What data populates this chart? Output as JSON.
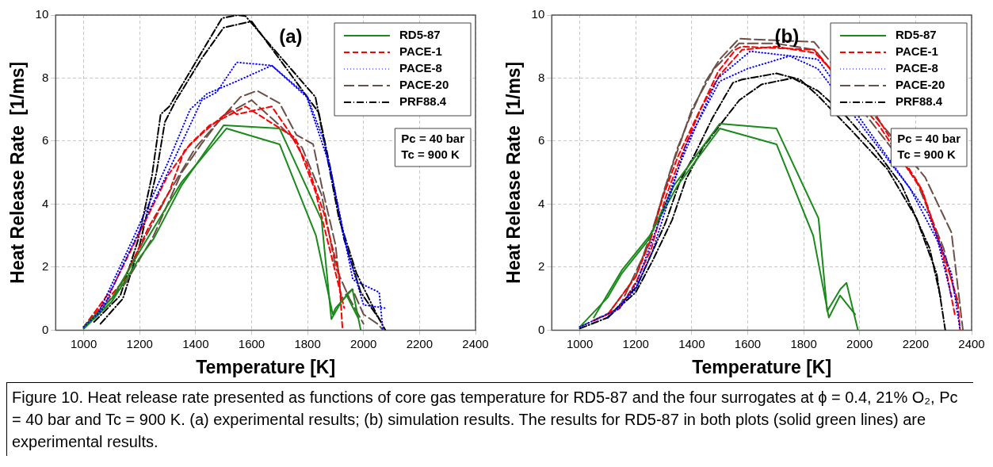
{
  "chart_data": [
    {
      "type": "line",
      "xlabel": "Temperature [K]",
      "ylabel": "Heat Release Rate  [1/ms]",
      "xlim": [
        900,
        2400
      ],
      "ylim": [
        0,
        10
      ],
      "xticks": [
        1000,
        1200,
        1400,
        1600,
        1800,
        2000,
        2200,
        2400
      ],
      "yticks": [
        0,
        2,
        4,
        6,
        8,
        10
      ],
      "grid": true,
      "legend": "top right",
      "annotations": [
        "(a)",
        "Pc = 40 bar",
        "Tc = 900 K"
      ],
      "series": [
        {
          "name": "RD5-87",
          "color": "#1a8a1a",
          "line_style": "solid",
          "x": [
            1000,
            1100,
            1200,
            1250,
            1350,
            1500,
            1700,
            1850,
            1885,
            1920,
            1960,
            1990
          ],
          "values": [
            0.05,
            0.9,
            2.3,
            2.9,
            4.6,
            6.5,
            6.4,
            3.5,
            0.35,
            0.9,
            1.3,
            0
          ]
        },
        {
          "color": "#1a8a1a",
          "line_style": "solid",
          "x": [
            1000,
            1100,
            1200,
            1350,
            1510,
            1700,
            1830,
            1890,
            1900,
            1940,
            1980
          ],
          "values": [
            0.1,
            1.0,
            2.5,
            4.7,
            6.4,
            5.9,
            3.0,
            0.5,
            0.7,
            1.1,
            0.4
          ]
        },
        {
          "name": "PACE-1",
          "color": "#ff0000",
          "line_style": "dashed",
          "x": [
            1000,
            1141,
            1234,
            1306,
            1360,
            1412,
            1444,
            1525,
            1547,
            1672,
            1734,
            1797,
            1859,
            1912,
            1925
          ],
          "values": [
            0.1,
            1.55,
            3.3,
            4.4,
            5.7,
            6.15,
            6.4,
            7.0,
            6.85,
            7.1,
            6.3,
            5.3,
            3.7,
            1.8,
            0
          ]
        },
        {
          "color": "#ff0000",
          "line_style": "dashed",
          "x": [
            1000,
            1100,
            1200,
            1300,
            1380,
            1450,
            1578,
            1756,
            1828,
            1931
          ],
          "values": [
            0.1,
            1.3,
            3.1,
            4.9,
            5.9,
            6.5,
            7.1,
            6.1,
            4.4,
            0.7
          ]
        },
        {
          "name": "PACE-8",
          "color": "#0000ff",
          "line_style": "dotted",
          "x": [
            1000,
            1069,
            1150,
            1306,
            1422,
            1475,
            1547,
            1672,
            1797,
            1859,
            1931,
            1962,
            2056,
            2069
          ],
          "values": [
            0.1,
            0.68,
            2.25,
            5.1,
            7.3,
            7.55,
            8.5,
            8.4,
            7.45,
            6.0,
            2.95,
            1.6,
            1.2,
            0
          ]
        },
        {
          "color": "#0000ff",
          "line_style": "dotted",
          "x": [
            1050,
            1150,
            1300,
            1380,
            1440,
            1547,
            1672,
            1797,
            1880,
            1940,
            2000,
            2078
          ],
          "values": [
            0.5,
            2.4,
            5.3,
            7.0,
            7.5,
            7.9,
            8.4,
            7.4,
            5.2,
            2.6,
            0.8,
            0.7
          ]
        },
        {
          "name": "PACE-20",
          "color": "#6b5048",
          "line_style": "longdash",
          "x": [
            1000,
            1150,
            1250,
            1300,
            1350,
            1420,
            1480,
            1560,
            1620,
            1700,
            1760,
            1820,
            1850,
            1900,
            1920,
            1960,
            2000,
            2050,
            2070
          ],
          "values": [
            0.1,
            1.5,
            3.0,
            4.0,
            5.0,
            5.9,
            6.6,
            7.4,
            7.6,
            7.2,
            6.2,
            5.9,
            4.6,
            2.7,
            1.0,
            1.3,
            0.5,
            0.2,
            0
          ]
        },
        {
          "color": "#6b5048",
          "line_style": "longdash",
          "x": [
            1000,
            1100,
            1200,
            1300,
            1400,
            1500,
            1600,
            1700,
            1780,
            1850,
            1900,
            1950,
            2000
          ],
          "values": [
            0.05,
            0.9,
            2.6,
            4.3,
            5.8,
            6.8,
            7.3,
            6.5,
            5.8,
            4.3,
            2.0,
            1.0,
            0.2
          ]
        },
        {
          "name": "PRF88.4",
          "color": "#000000",
          "line_style": "dashdot",
          "x": [
            1037,
            1131,
            1194,
            1244,
            1275,
            1306,
            1400,
            1494,
            1550,
            1578,
            1681,
            1828,
            1859,
            1912,
            1975,
            2047,
            2078
          ],
          "values": [
            0.26,
            1.1,
            2.85,
            4.9,
            6.85,
            7.1,
            8.5,
            9.9,
            10,
            9.97,
            8.9,
            7.4,
            6.0,
            3.55,
            1.8,
            0.5,
            0
          ]
        },
        {
          "color": "#000000",
          "line_style": "dashdot",
          "x": [
            1060,
            1140,
            1200,
            1260,
            1290,
            1330,
            1420,
            1500,
            1600,
            1700,
            1840,
            1880,
            1930,
            1990,
            2060
          ],
          "values": [
            0.2,
            1.0,
            2.7,
            5.0,
            6.6,
            7.3,
            8.6,
            9.6,
            9.8,
            8.6,
            6.9,
            5.2,
            2.9,
            1.2,
            0.3
          ]
        }
      ]
    },
    {
      "type": "line",
      "xlabel": "Temperature [K]",
      "ylabel": "Heat Release Rate  [1/ms]",
      "xlim": [
        900,
        2400
      ],
      "ylim": [
        0,
        10
      ],
      "xticks": [
        1000,
        1200,
        1400,
        1600,
        1800,
        2000,
        2200,
        2400
      ],
      "yticks": [
        0,
        2,
        4,
        6,
        8,
        10
      ],
      "grid": true,
      "legend": "top right",
      "annotations": [
        "(b)",
        "Pc = 40 bar",
        "Tc = 900 K"
      ],
      "series": [
        {
          "name": "RD5-87",
          "color": "#1a8a1a",
          "line_style": "solid",
          "x": [
            1000,
            1100,
            1150,
            1244,
            1337,
            1500,
            1703,
            1853,
            1884,
            1931,
            1953,
            1994
          ],
          "values": [
            0.1,
            1.04,
            1.8,
            2.85,
            4.6,
            6.55,
            6.4,
            3.55,
            0.6,
            1.3,
            1.5,
            0
          ]
        },
        {
          "color": "#1a8a1a",
          "line_style": "solid",
          "x": [
            1050,
            1150,
            1250,
            1350,
            1500,
            1703,
            1834,
            1890,
            1930,
            1984
          ],
          "values": [
            0.4,
            1.9,
            3.0,
            4.6,
            6.4,
            5.9,
            3.0,
            0.4,
            1.1,
            0.5
          ]
        },
        {
          "name": "PACE-1",
          "color": "#ff0000",
          "line_style": "dashed",
          "x": [
            1050,
            1141,
            1203,
            1256,
            1306,
            1359,
            1431,
            1494,
            1556,
            1578,
            1837,
            2069,
            2141,
            2225,
            2306,
            2350,
            2359
          ],
          "values": [
            0.3,
            0.68,
            1.56,
            2.6,
            4.2,
            5.45,
            7.0,
            8.2,
            8.9,
            9.0,
            8.9,
            6.5,
            null,
            4.4,
            2.25,
            0.95,
            0
          ]
        },
        {
          "color": "#ff0000",
          "line_style": "dashed",
          "x": [
            1100,
            1200,
            1250,
            1300,
            1350,
            1430,
            1500,
            1580,
            1700,
            1840,
            1950,
            2060,
            2140,
            2220,
            2300,
            2340
          ],
          "values": [
            0.5,
            1.7,
            2.8,
            4.3,
            5.5,
            7.0,
            8.1,
            8.9,
            9.0,
            8.8,
            null,
            6.8,
            null,
            4.5,
            2.3,
            0.5
          ]
        },
        {
          "name": "PACE-8",
          "color": "#0000ff",
          "line_style": "dotted",
          "x": [
            1000,
            1141,
            1203,
            1306,
            1359,
            1431,
            1494,
            1609,
            1756,
            1850,
            1994,
            2131,
            2244,
            2328,
            2359
          ],
          "values": [
            0.1,
            0.68,
            1.5,
            4.0,
            5.3,
            6.8,
            8.0,
            8.85,
            8.7,
            8.6,
            null,
            null,
            3.7,
            1.8,
            0
          ]
        },
        {
          "color": "#0000ff",
          "line_style": "dotted",
          "x": [
            1100,
            1200,
            1260,
            1320,
            1380,
            1440,
            1500,
            1600,
            1750,
            1850,
            1960,
            2080,
            2180,
            2280,
            2330
          ],
          "values": [
            0.4,
            1.3,
            2.5,
            4.2,
            5.9,
            6.9,
            7.9,
            8.3,
            8.7,
            8.3,
            null,
            null,
            4.5,
            2.8,
            1.0
          ]
        },
        {
          "name": "PACE-20",
          "color": "#6b5048",
          "line_style": "longdash",
          "x": [
            1000,
            1140,
            1250,
            1300,
            1350,
            1400,
            1450,
            1500,
            1569,
            1700,
            1837,
            2000,
            2120,
            2234,
            2328,
            2369
          ],
          "values": [
            0.1,
            0.7,
            2.8,
            4.4,
            5.8,
            6.9,
            7.9,
            8.6,
            9.25,
            9.2,
            9.15,
            null,
            null,
            4.85,
            3.1,
            0
          ]
        },
        {
          "color": "#6b5048",
          "line_style": "longdash",
          "x": [
            1100,
            1200,
            1260,
            1330,
            1400,
            1480,
            1569,
            1700,
            1840,
            1980,
            2100,
            2200,
            2300,
            2350
          ],
          "values": [
            0.5,
            1.7,
            3.2,
            5.2,
            7.0,
            8.3,
            9.1,
            9.1,
            8.9,
            null,
            null,
            4.8,
            2.6,
            0.8
          ]
        },
        {
          "name": "PRF88.4",
          "color": "#000000",
          "line_style": "dashdot",
          "x": [
            1000,
            1100,
            1203,
            1306,
            1359,
            1412,
            1475,
            1547,
            1578,
            1703,
            1787,
            1850,
            1975,
            2100,
            2203,
            2275,
            2306
          ],
          "values": [
            0.05,
            0.4,
            1.38,
            3.4,
            4.75,
            5.6,
            6.75,
            7.85,
            7.95,
            8.15,
            7.95,
            7.45,
            6.3,
            5.1,
            3.55,
            1.8,
            0
          ]
        },
        {
          "color": "#000000",
          "line_style": "dashdot",
          "x": [
            1100,
            1200,
            1260,
            1330,
            1380,
            1440,
            1500,
            1570,
            1650,
            1760,
            1850,
            1950,
            2050,
            2150,
            2250,
            2290
          ],
          "values": [
            0.4,
            1.2,
            2.2,
            3.5,
            4.8,
            5.8,
            6.5,
            7.3,
            7.8,
            8.0,
            7.6,
            6.8,
            5.8,
            4.6,
            2.6,
            1.0
          ]
        }
      ]
    },
    {
      "type": "other",
      "annotations": [
        "Figure 10. Heat release rate presented as functions of core gas temperature for RD5-87 and the four surrogates at ϕ = 0.4, 21% O₂, Pc = 40 bar and Tc = 900 K. (a) experimental results; (b) simulation results. The results for RD5-87 in both plots (solid green lines) are experimental results."
      ]
    }
  ]
}
